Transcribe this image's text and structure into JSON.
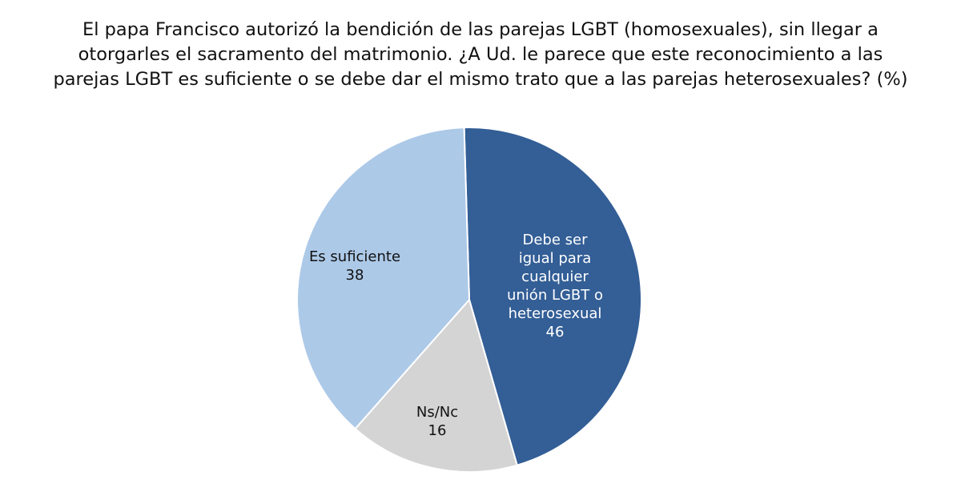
{
  "chart_data": {
    "type": "pie",
    "title_lines": [
      "El papa Francisco autorizó la bendición de las parejas LGBT (homosexuales), sin llegar a",
      "otorgarles el sacramento del matrimonio. ¿A Ud. le parece que este reconocimiento a las",
      "parejas LGBT es suficiente o se debe dar el mismo trato que a las parejas heterosexuales? (%)"
    ],
    "slices": [
      {
        "label_lines": [
          "Debe ser",
          "igual para",
          "cualquier",
          "unión LGBT o",
          "heterosexual"
        ],
        "value": 46,
        "color": "#335e96",
        "text_color": "#ffffff"
      },
      {
        "label_lines": [
          "Ns/Nc"
        ],
        "value": 16,
        "color": "#d4d4d4",
        "text_color": "#111111"
      },
      {
        "label_lines": [
          "Es suficiente"
        ],
        "value": 38,
        "color": "#adc9e8",
        "text_color": "#111111"
      }
    ]
  }
}
